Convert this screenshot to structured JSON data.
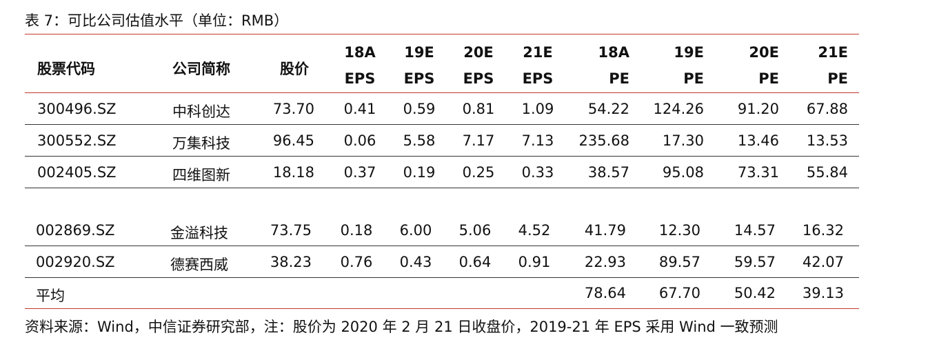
{
  "title": "表 7：可比公司估值水平（单位：RMB）",
  "headers": [
    {
      "line1": "股票代码",
      "line2": ""
    },
    {
      "line1": "公司简称",
      "line2": ""
    },
    {
      "line1": "股价",
      "line2": ""
    },
    {
      "line1": "18A",
      "line2": "EPS"
    },
    {
      "line1": "19E",
      "line2": "EPS"
    },
    {
      "line1": "20E",
      "line2": "EPS"
    },
    {
      "line1": "21E",
      "line2": "EPS"
    },
    {
      "line1": "18A",
      "line2": "PE"
    },
    {
      "line1": "19E",
      "line2": "PE"
    },
    {
      "line1": "20E",
      "line2": "PE"
    },
    {
      "line1": "21E",
      "line2": "PE"
    }
  ],
  "group1": [
    [
      "300496.SZ",
      "中科创达",
      "73.70",
      "0.41",
      "0.59",
      "0.81",
      "1.09",
      "54.22",
      "124.26",
      "91.20",
      "67.88"
    ],
    [
      "300552.SZ",
      "万集科技",
      "96.45",
      "0.06",
      "5.58",
      "7.17",
      "7.13",
      "235.68",
      "17.30",
      "13.46",
      "13.53"
    ],
    [
      "002405.SZ",
      "四维图新",
      "18.18",
      "0.37",
      "0.19",
      "0.25",
      "0.33",
      "38.57",
      "95.08",
      "73.31",
      "55.84"
    ]
  ],
  "group2": [
    [
      "002869.SZ",
      "金溢科技",
      "73.75",
      "0.18",
      "6.00",
      "5.06",
      "4.52",
      "41.79",
      "12.30",
      "14.57",
      "16.32"
    ],
    [
      "002920.SZ",
      "德赛西威",
      "38.23",
      "0.76",
      "0.43",
      "0.64",
      "0.91",
      "22.93",
      "89.57",
      "59.57",
      "42.07"
    ]
  ],
  "average": {
    "label": "平均",
    "values": [
      "78.64",
      "67.70",
      "50.42",
      "39.13"
    ]
  },
  "source": "资料来源：Wind，中信证券研究部，注：股价为 2020 年 2 月 21 日收盘价，2019-21 年 EPS 采用 Wind 一致预测"
}
